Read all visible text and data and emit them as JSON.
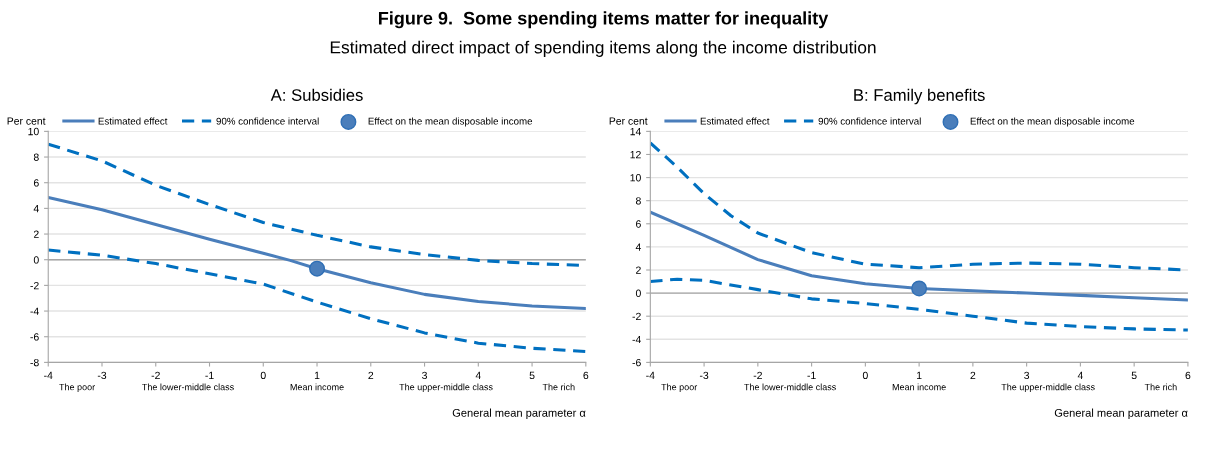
{
  "chart_data": [
    {
      "type": "line",
      "title": "A: Subsidies",
      "xlabel": "General mean parameter α",
      "ylabel": "Per cent",
      "annotations": [
        "Figure 9.  Some spending items matter for inequality",
        "Estimated direct impact of spending items along the income distribution",
        "The poor",
        "The lower-middle class",
        "Mean income",
        "The upper-middle class",
        "The rich"
      ],
      "xlim": [
        -4,
        6
      ],
      "xticks": [
        -4,
        -3,
        -2,
        -1,
        0,
        1,
        2,
        3,
        4,
        5,
        6
      ],
      "ylim": [
        -8,
        10
      ],
      "yticks": [
        -8,
        -6,
        -4,
        -2,
        0,
        2,
        4,
        6,
        8,
        10
      ],
      "grid": "y",
      "legend": "top",
      "ref_lines": [
        {
          "axis": "y",
          "value": 0,
          "color": "#a6a6a6"
        }
      ],
      "series": [
        {
          "name": "Estimated effect",
          "color": "#4a7ebb",
          "line_style": "solid",
          "x": [
            -4,
            -3,
            -2,
            -1,
            0,
            0.5,
            1,
            2,
            3,
            4,
            5,
            6
          ],
          "values": [
            4.85,
            3.9,
            2.75,
            1.6,
            0.5,
            -0.05,
            -0.7,
            -1.8,
            -2.7,
            -3.25,
            -3.6,
            -3.8
          ]
        },
        {
          "name": "90% confidence interval",
          "color": "#0070c0",
          "line_style": "dashed",
          "x": [
            -4,
            -3,
            -2,
            -1,
            0,
            1,
            2,
            3,
            4,
            5,
            6
          ],
          "values": [
            9.0,
            7.7,
            5.8,
            4.3,
            2.9,
            1.9,
            1.0,
            0.4,
            -0.05,
            -0.3,
            -0.45
          ]
        },
        {
          "color": "#0070c0",
          "line_style": "dashed",
          "x": [
            -4,
            -3,
            -2,
            -1,
            0,
            1,
            2,
            3,
            4,
            5,
            6
          ],
          "values": [
            0.75,
            0.35,
            -0.3,
            -1.1,
            -1.9,
            -3.3,
            -4.6,
            -5.7,
            -6.5,
            -6.9,
            -7.15
          ]
        },
        {
          "name": "Effect on the mean disposable income",
          "type": "scatter",
          "marker": "circle",
          "color": "#4a7ebb",
          "x": [
            1
          ],
          "values": [
            -0.7
          ]
        }
      ]
    },
    {
      "type": "line",
      "title": "B: Family benefits",
      "xlabel": "General mean parameter α",
      "ylabel": "Per cent",
      "annotations": [
        "The poor",
        "The lower-middle class",
        "Mean income",
        "The upper-middle class",
        "The rich"
      ],
      "xlim": [
        -4,
        6
      ],
      "xticks": [
        -4,
        -3,
        -2,
        -1,
        0,
        1,
        2,
        3,
        4,
        5,
        6
      ],
      "ylim": [
        -6,
        14
      ],
      "yticks": [
        -6,
        -4,
        -2,
        0,
        2,
        4,
        6,
        8,
        10,
        12,
        14
      ],
      "grid": "y",
      "legend": "top",
      "ref_lines": [
        {
          "axis": "y",
          "value": 0,
          "color": "#a6a6a6"
        }
      ],
      "series": [
        {
          "name": "Estimated effect",
          "color": "#4a7ebb",
          "line_style": "solid",
          "x": [
            -4,
            -3,
            -2,
            -1,
            0,
            1,
            2,
            3,
            4,
            5,
            6
          ],
          "values": [
            7.0,
            5.0,
            2.9,
            1.5,
            0.8,
            0.4,
            0.2,
            0.0,
            -0.2,
            -0.4,
            -0.6
          ]
        },
        {
          "name": "90% confidence interval",
          "color": "#0070c0",
          "line_style": "dashed",
          "x": [
            -4,
            -3.5,
            -3,
            -2.5,
            -2,
            -1,
            0,
            1,
            2,
            3,
            4,
            5,
            6
          ],
          "values": [
            13.0,
            10.9,
            8.6,
            6.7,
            5.2,
            3.5,
            2.5,
            2.2,
            2.5,
            2.6,
            2.5,
            2.2,
            2.0
          ]
        },
        {
          "color": "#0070c0",
          "line_style": "dashed",
          "x": [
            -4,
            -3.5,
            -3,
            -2,
            -1,
            0,
            1,
            2,
            3,
            4,
            5,
            6
          ],
          "values": [
            1.0,
            1.2,
            1.1,
            0.3,
            -0.5,
            -0.9,
            -1.4,
            -2.0,
            -2.6,
            -2.9,
            -3.1,
            -3.2
          ]
        },
        {
          "name": "Effect on the mean disposable income",
          "type": "scatter",
          "marker": "circle",
          "color": "#4a7ebb",
          "x": [
            1
          ],
          "values": [
            0.4
          ]
        }
      ]
    }
  ]
}
